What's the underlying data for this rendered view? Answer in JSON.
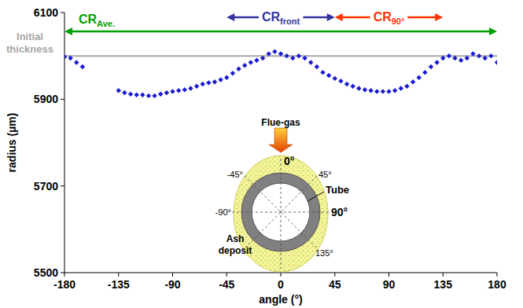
{
  "chart_data": {
    "type": "scatter",
    "x_label": "angle (°)",
    "y_label": "radius (µm)",
    "x": [
      -180,
      -175,
      -170,
      -165,
      -135,
      -130,
      -125,
      -120,
      -115,
      -110,
      -105,
      -100,
      -95,
      -90,
      -85,
      -80,
      -75,
      -70,
      -65,
      -60,
      -55,
      -50,
      -45,
      -40,
      -35,
      -30,
      -25,
      -20,
      -15,
      -10,
      -5,
      0,
      5,
      10,
      15,
      20,
      25,
      30,
      35,
      40,
      45,
      50,
      55,
      60,
      65,
      70,
      75,
      80,
      85,
      90,
      95,
      100,
      105,
      110,
      115,
      120,
      125,
      130,
      135,
      140,
      145,
      150,
      155,
      160,
      165,
      170,
      175,
      180
    ],
    "values": [
      5998,
      5995,
      5985,
      5975,
      5920,
      5915,
      5912,
      5910,
      5910,
      5908,
      5908,
      5912,
      5915,
      5918,
      5920,
      5922,
      5925,
      5930,
      5935,
      5938,
      5940,
      5945,
      5950,
      5960,
      5970,
      5978,
      5985,
      5990,
      5995,
      6005,
      6010,
      6005,
      6000,
      5995,
      6000,
      5995,
      5985,
      5975,
      5962,
      5955,
      5948,
      5942,
      5935,
      5930,
      5925,
      5922,
      5920,
      5918,
      5918,
      5918,
      5920,
      5925,
      5930,
      5940,
      5950,
      5962,
      5975,
      5985,
      5995,
      6000,
      5995,
      5990,
      5995,
      6005,
      6000,
      5995,
      6000,
      5985
    ],
    "color": "#1a1ad2",
    "marker": "diamond",
    "xlim": [
      -180,
      180
    ],
    "xticks": [
      -180,
      -135,
      -90,
      -45,
      0,
      45,
      90,
      135,
      180
    ],
    "ylim": [
      5500,
      6100
    ],
    "yticks": [
      5500,
      5700,
      5900,
      6100
    ],
    "reference_line": {
      "label": "Initial thickness",
      "value": 6000,
      "color": "#a6a6a6"
    },
    "ranges": [
      {
        "text": "CR",
        "sub": "Ave.",
        "from": -180,
        "to": 180,
        "color": "#00a000"
      },
      {
        "text": "CR",
        "sub": "front",
        "from": -45,
        "to": 45,
        "color": "#3333a0"
      },
      {
        "text": "CR",
        "sub": "90°",
        "from": 45,
        "to": 135,
        "color": "#ff3300"
      }
    ],
    "diagram": {
      "flow_label": "Flue-gas",
      "tube_label": "Tube",
      "deposit_label": "Ash deposit",
      "angle_labels": [
        "0°",
        "45°",
        "-45°",
        "-90°",
        "90°",
        "135°"
      ]
    }
  }
}
